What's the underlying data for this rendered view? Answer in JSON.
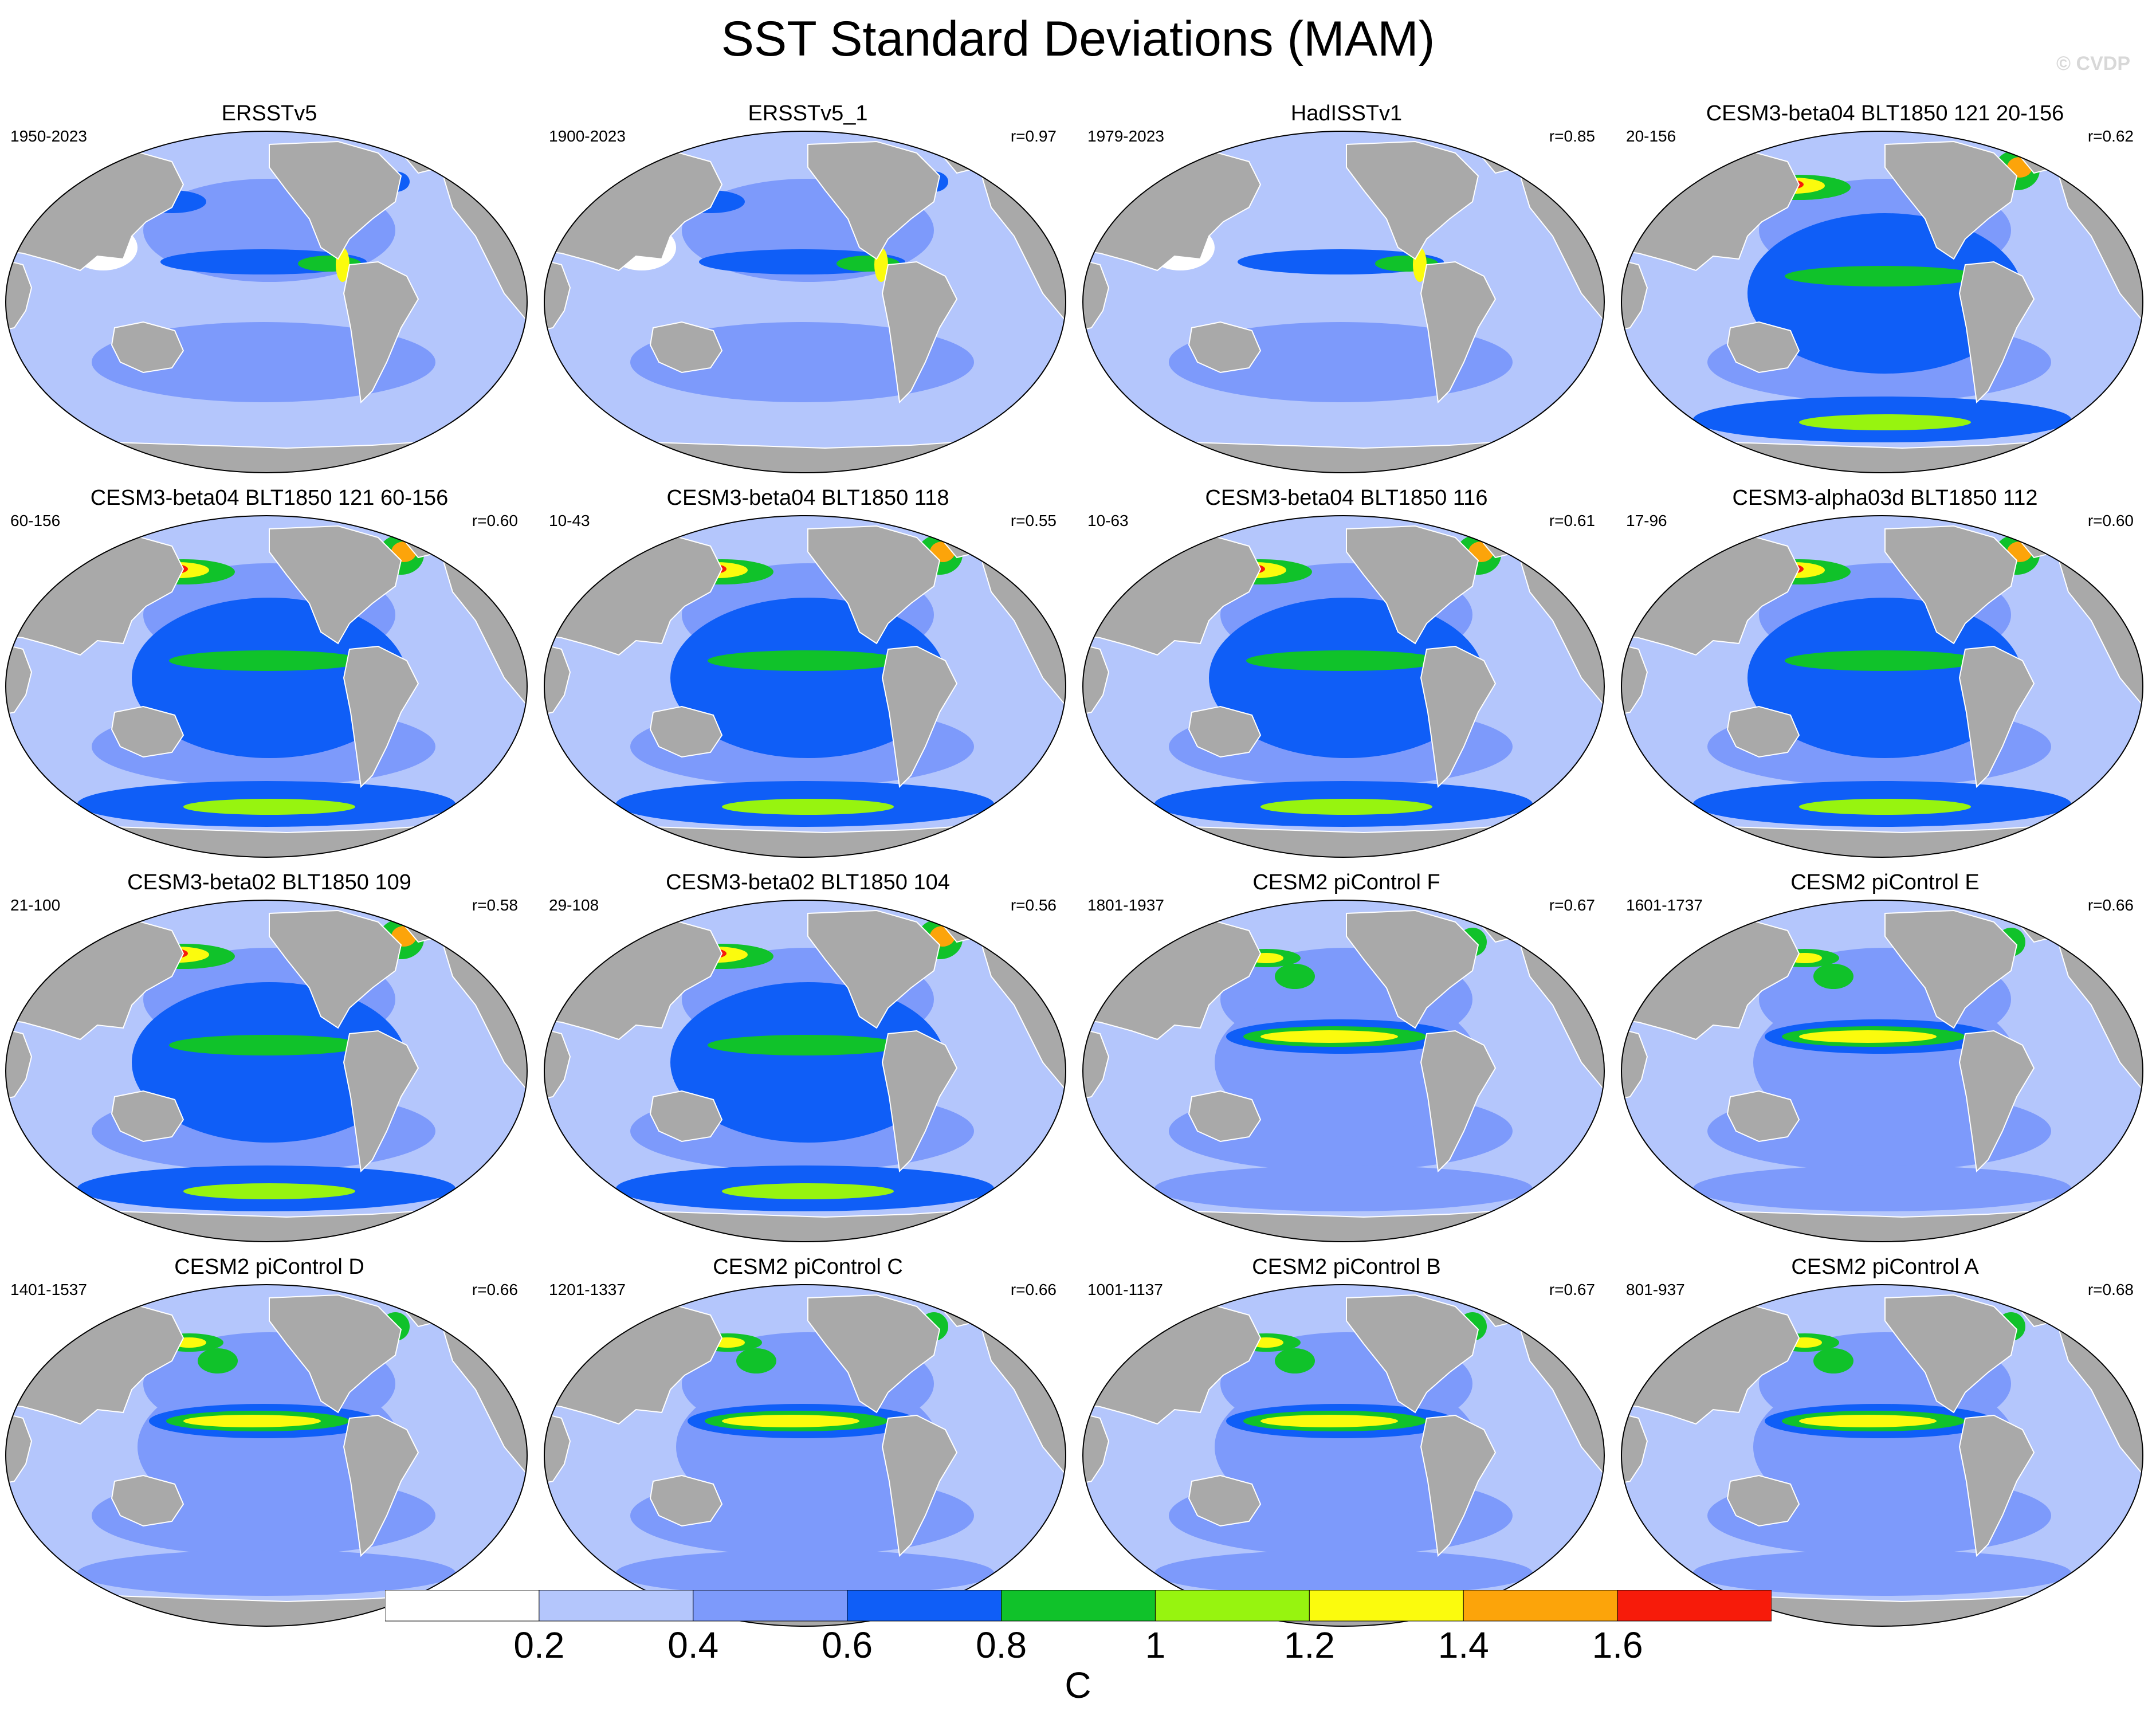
{
  "title": "SST Standard Deviations (MAM)",
  "watermark": "© CVDP",
  "colors": {
    "land": "#a9a9a9",
    "ocean_levels": [
      "#ffffff",
      "#b4c6fc",
      "#7d9afb",
      "#0f5ef7",
      "#10c22a",
      "#97f40f",
      "#fbfb0d",
      "#fca40a",
      "#f71b0a"
    ]
  },
  "panels": [
    {
      "title": "ERSSTv5",
      "years": "1950-2023",
      "corr": "",
      "style": "obs"
    },
    {
      "title": "ERSSTv5_1",
      "years": "1900-2023",
      "corr": "r=0.97",
      "style": "obs"
    },
    {
      "title": "HadISSTv1",
      "years": "1979-2023",
      "corr": "r=0.85",
      "style": "obs_weak"
    },
    {
      "title": "CESM3-beta04 BLT1850 121 20-156",
      "years": "20-156",
      "corr": "r=0.62",
      "style": "cesm3"
    },
    {
      "title": "CESM3-beta04 BLT1850 121 60-156",
      "years": "60-156",
      "corr": "r=0.60",
      "style": "cesm3"
    },
    {
      "title": "CESM3-beta04 BLT1850 118",
      "years": "10-43",
      "corr": "r=0.55",
      "style": "cesm3"
    },
    {
      "title": "CESM3-beta04 BLT1850 116",
      "years": "10-63",
      "corr": "r=0.61",
      "style": "cesm3"
    },
    {
      "title": "CESM3-alpha03d BLT1850 112",
      "years": "17-96",
      "corr": "r=0.60",
      "style": "cesm3"
    },
    {
      "title": "CESM3-beta02 BLT1850 109",
      "years": "21-100",
      "corr": "r=0.58",
      "style": "cesm3"
    },
    {
      "title": "CESM3-beta02 BLT1850 104",
      "years": "29-108",
      "corr": "r=0.56",
      "style": "cesm3"
    },
    {
      "title": "CESM2 piControl F",
      "years": "1801-1937",
      "corr": "r=0.67",
      "style": "cesm2"
    },
    {
      "title": "CESM2 piControl E",
      "years": "1601-1737",
      "corr": "r=0.66",
      "style": "cesm2"
    },
    {
      "title": "CESM2 piControl D",
      "years": "1401-1537",
      "corr": "r=0.66",
      "style": "cesm2"
    },
    {
      "title": "CESM2 piControl C",
      "years": "1201-1337",
      "corr": "r=0.66",
      "style": "cesm2"
    },
    {
      "title": "CESM2 piControl B",
      "years": "1001-1137",
      "corr": "r=0.67",
      "style": "cesm2"
    },
    {
      "title": "CESM2 piControl A",
      "years": "801-937",
      "corr": "r=0.68",
      "style": "cesm2"
    }
  ],
  "colorbar": {
    "ticks": [
      "0.2",
      "0.4",
      "0.6",
      "0.8",
      "1",
      "1.2",
      "1.4",
      "1.6"
    ],
    "units": "C"
  }
}
